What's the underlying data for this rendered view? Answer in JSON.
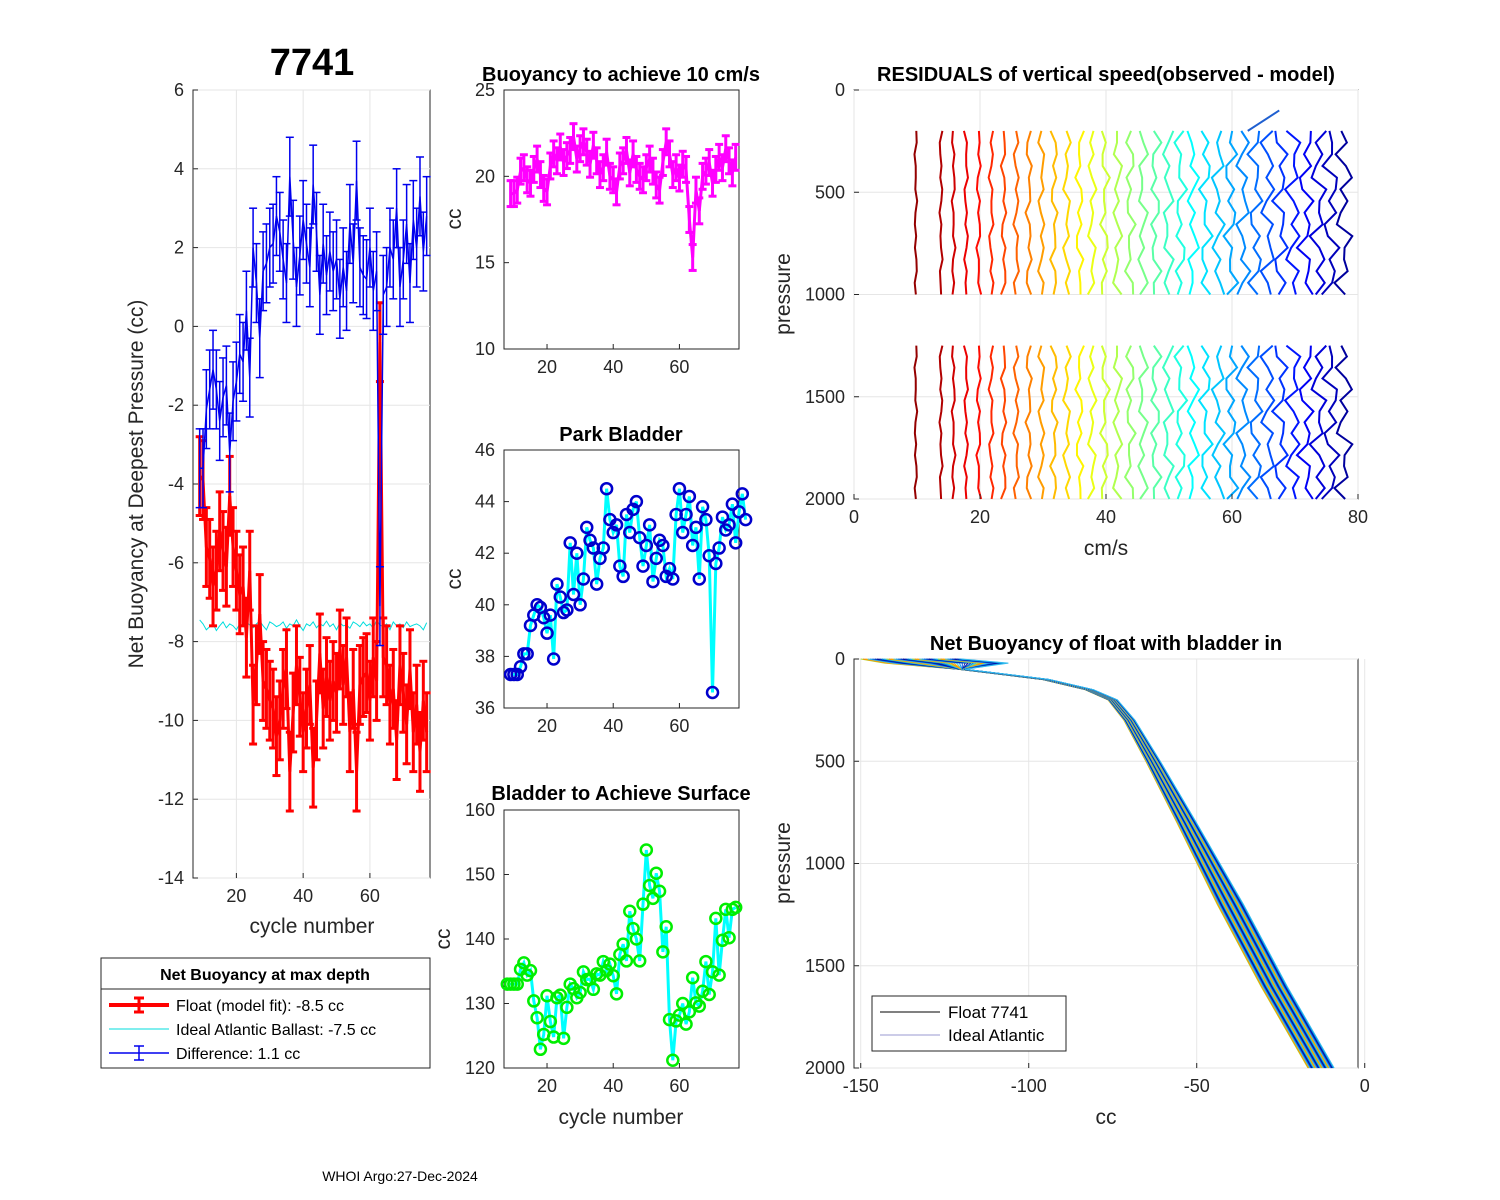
{
  "figure": {
    "float_id": "7741",
    "footer": "WHOI Argo:27-Dec-2024",
    "colors": {
      "float": "#ff0000",
      "difference": "#0000ee",
      "ideal": "#00dddd",
      "bladder_line": "#00ffff",
      "park_marker": "#0000cc",
      "surface_marker": "#00ee00",
      "buoy10": "#ff00ff"
    }
  },
  "chart_data": [
    {
      "id": "net_buoyancy",
      "type": "line",
      "title": "7741",
      "xlabel": "cycle number",
      "ylabel": "Net Buoyancy at Deepest Pressure (cc)",
      "xlim": [
        7,
        78
      ],
      "ylim": [
        -14,
        6
      ],
      "xticks": [
        20,
        40,
        60
      ],
      "yticks": [
        -14,
        -12,
        -10,
        -8,
        -6,
        -4,
        -2,
        0,
        2,
        4,
        6
      ],
      "cycle_start": 9,
      "series": [
        {
          "name": "Float (model fit)",
          "errorbar": 1.0,
          "values": [
            -3.8,
            -3.9,
            -5.6,
            -5.9,
            -6.6,
            -6.2,
            -5.2,
            -5.7,
            -6.1,
            -4.3,
            -5.6,
            -6.2,
            -6.8,
            -6.6,
            -7.9,
            -6.2,
            -9.6,
            -8.6,
            -7.3,
            -9.0,
            -9.2,
            -9.5,
            -9.7,
            -10.4,
            -10.0,
            -9.2,
            -8.7,
            -11.3,
            -9.8,
            -8.6,
            -9.4,
            -10.3,
            -9.7,
            -9.1,
            -11.2,
            -10.0,
            -8.3,
            -9.7,
            -8.9,
            -9.5,
            -9.0,
            -9.3,
            -8.2,
            -9.1,
            -8.4,
            -10.3,
            -9.2,
            -11.3,
            -9.1,
            -8.9,
            -8.8,
            -9.5,
            -8.4,
            -9.0,
            -0.4,
            -8.4,
            -8.6,
            -9.6,
            -9.2,
            -10.5,
            -8.6,
            -9.3,
            -10.1,
            -8.7,
            -10.3,
            -9.6,
            -10.8,
            -9.5,
            -10.3
          ]
        },
        {
          "name": "Ideal Atlantic Ballast",
          "values": [
            -7.45,
            -7.55,
            -7.7,
            -7.62,
            -7.55,
            -7.72,
            -7.6,
            -7.5,
            -7.65,
            -7.55,
            -7.6,
            -7.7,
            -7.55,
            -7.62,
            -7.5,
            -7.58,
            -7.65,
            -7.55,
            -7.48,
            -7.6,
            -7.7,
            -7.5,
            -7.55,
            -7.62,
            -7.58,
            -7.5,
            -7.66,
            -7.55,
            -7.6,
            -7.45,
            -7.6,
            -7.72,
            -7.55,
            -7.6,
            -7.5,
            -7.65,
            -7.55,
            -7.6,
            -7.48,
            -7.62,
            -7.55,
            -7.7,
            -7.52,
            -7.6,
            -7.58,
            -7.66,
            -7.5,
            -7.55,
            -7.62,
            -7.5,
            -7.6,
            -7.55,
            -7.66,
            -7.45,
            -7.58,
            -7.62,
            -7.55,
            -7.7,
            -7.5,
            -7.6,
            -7.55,
            -7.65,
            -7.5,
            -7.62,
            -7.58,
            -7.55,
            -7.6,
            -7.7,
            -7.52
          ]
        },
        {
          "name": "Difference",
          "errorbar": 1.0,
          "values": [
            -3.6,
            -3.6,
            -2.1,
            -1.6,
            -1.1,
            -1.6,
            -2.4,
            -1.8,
            -1.5,
            -3.2,
            -1.9,
            -1.4,
            -0.7,
            -0.9,
            0.4,
            -1.3,
            2.0,
            1.1,
            -0.3,
            1.4,
            1.6,
            2.0,
            2.1,
            2.8,
            2.4,
            1.7,
            1.1,
            3.8,
            2.2,
            1.0,
            1.8,
            2.7,
            2.1,
            1.5,
            3.6,
            2.4,
            0.8,
            2.1,
            1.3,
            1.9,
            1.4,
            1.7,
            0.7,
            1.5,
            0.9,
            2.6,
            1.6,
            3.7,
            1.5,
            1.3,
            1.2,
            2.0,
            0.9,
            1.4,
            -7.1,
            0.8,
            1.0,
            2.0,
            1.7,
            3.0,
            1.0,
            1.7,
            2.6,
            1.1,
            2.7,
            2.0,
            3.3,
            1.9,
            2.8
          ]
        }
      ],
      "legend": {
        "title": "Net Buoyancy at max depth",
        "entries": [
          "Float (model fit):  -8.5 cc",
          "Ideal Atlantic Ballast:  -7.5 cc",
          "Difference:   1.1 cc"
        ]
      }
    },
    {
      "id": "buoyancy_10cms",
      "type": "line",
      "title": "Buoyancy to achieve 10 cm/s",
      "ylabel": "cc",
      "xlim": [
        7,
        78
      ],
      "ylim": [
        10,
        25
      ],
      "xticks": [
        20,
        40,
        60
      ],
      "yticks": [
        10,
        15,
        20,
        25
      ],
      "cycle_start": 9,
      "errorbar": 0.75,
      "values": [
        19.0,
        19.0,
        19.2,
        20.3,
        20.5,
        19.8,
        19.6,
        20.4,
        21.0,
        20.1,
        19.3,
        19.1,
        20.6,
        21.3,
        20.9,
        21.7,
        20.8,
        21.2,
        21.5,
        22.3,
        21.0,
        21.6,
        22.0,
        21.4,
        20.7,
        21.8,
        20.9,
        20.1,
        20.5,
        21.4,
        20.0,
        19.8,
        19.1,
        20.6,
        20.9,
        21.5,
        20.2,
        21.3,
        20.4,
        20.0,
        19.8,
        20.5,
        21.0,
        20.3,
        19.5,
        19.2,
        20.8,
        22.0,
        21.3,
        20.1,
        20.5,
        19.9,
        20.7,
        20.4,
        17.5,
        15.3,
        19.2,
        18.0,
        20.0,
        20.3,
        20.8,
        19.6,
        20.4,
        21.1,
        20.5,
        21.6,
        20.9,
        20.2,
        21.1
      ]
    },
    {
      "id": "park_bladder",
      "type": "line",
      "title": "Park Bladder",
      "ylabel": "cc",
      "xlim": [
        7,
        78
      ],
      "ylim": [
        36,
        46
      ],
      "xticks": [
        20,
        40,
        60
      ],
      "yticks": [
        36,
        38,
        40,
        42,
        44,
        46
      ],
      "cycle_start": 9,
      "values": [
        37.3,
        37.3,
        37.3,
        37.6,
        38.1,
        38.1,
        39.2,
        39.6,
        40.0,
        39.9,
        39.5,
        38.9,
        39.6,
        37.9,
        40.8,
        40.3,
        39.7,
        39.8,
        42.4,
        40.4,
        42.0,
        40.0,
        41.0,
        43.0,
        42.5,
        42.2,
        40.8,
        41.8,
        42.2,
        44.5,
        43.3,
        42.8,
        43.1,
        41.5,
        41.1,
        43.5,
        42.8,
        43.7,
        44.0,
        42.6,
        41.5,
        42.3,
        43.1,
        40.9,
        41.8,
        42.5,
        42.3,
        41.1,
        41.4,
        41.0,
        43.5,
        44.5,
        42.8,
        43.5,
        44.2,
        42.3,
        43.0,
        41.0,
        43.8,
        43.3,
        41.9,
        36.6,
        41.6,
        42.2,
        43.4,
        42.9,
        43.1,
        43.9,
        42.4,
        43.6,
        44.3,
        43.3
      ]
    },
    {
      "id": "bladder_surface",
      "type": "line",
      "title": "Bladder to Achieve Surface",
      "xlabel": "cycle number",
      "ylabel": "cc",
      "xlim": [
        7,
        78
      ],
      "ylim": [
        120,
        160
      ],
      "xticks": [
        20,
        40,
        60
      ],
      "yticks": [
        120,
        130,
        140,
        150,
        160
      ],
      "cycle_start": 8,
      "values": [
        133.0,
        133.0,
        133.0,
        133.0,
        135.3,
        136.3,
        134.4,
        135.1,
        130.4,
        127.8,
        122.9,
        125.2,
        131.2,
        127.2,
        124.8,
        130.9,
        131.3,
        124.6,
        129.4,
        133.0,
        132.3,
        130.9,
        131.7,
        134.9,
        133.7,
        133.8,
        132.2,
        134.6,
        134.4,
        136.5,
        135.1,
        136.1,
        134.3,
        131.5,
        137.6,
        139.2,
        136.6,
        144.3,
        141.6,
        140.0,
        136.6,
        145.4,
        153.8,
        148.3,
        146.3,
        150.2,
        147.4,
        138.0,
        141.9,
        127.5,
        121.2,
        127.3,
        128.2,
        130.0,
        126.8,
        128.7,
        134.0,
        130.1,
        129.6,
        131.9,
        136.5,
        131.4,
        134.9,
        143.2,
        134.4,
        139.8,
        144.6,
        140.2,
        144.6,
        144.9
      ]
    },
    {
      "id": "residuals",
      "type": "line",
      "title": "RESIDUALS of vertical speed(observed - model)",
      "xlabel": "cm/s",
      "ylabel": "pressure",
      "xlim": [
        0,
        80
      ],
      "ylim": [
        2000,
        0
      ],
      "xticks": [
        0,
        20,
        40,
        60,
        80
      ],
      "yticks": [
        0,
        500,
        1000,
        1500,
        2000
      ],
      "profile_centers": [
        9.8,
        13.8,
        15.8,
        17.8,
        19.8,
        21.8,
        23.8,
        25.8,
        27.8,
        29.8,
        31.8,
        33.8,
        35.8,
        37.8,
        39.8,
        41.8,
        43.8,
        45.8,
        47.8,
        49.8,
        51.8,
        53.8,
        55.8,
        57.8,
        59.8,
        61.8,
        63.8,
        65.8,
        67.8,
        69.8,
        71.8,
        73.8,
        75.8,
        77.8
      ],
      "segments": [
        [
          200,
          1000
        ],
        [
          1250,
          2000
        ]
      ]
    },
    {
      "id": "net_buoyancy_profile",
      "type": "line",
      "title": "Net Buoyancy of float with bladder in",
      "xlabel": "cc",
      "ylabel": "pressure",
      "xlim": [
        -152,
        -2
      ],
      "ylim": [
        2000,
        0
      ],
      "xticks": [
        -150,
        -100,
        -50,
        0
      ],
      "yticks": [
        0,
        500,
        1000,
        1500,
        2000
      ],
      "base_profile": {
        "pressure": [
          0,
          20,
          50,
          100,
          150,
          200,
          300,
          500,
          800,
          1200,
          1600,
          2000
        ],
        "cc": [
          -150,
          -140,
          -120,
          -95,
          -82,
          -75,
          -70,
          -63,
          -53,
          -40,
          -27,
          -13
        ]
      },
      "legend": [
        "Float 7741",
        "Ideal Atlantic"
      ]
    }
  ]
}
